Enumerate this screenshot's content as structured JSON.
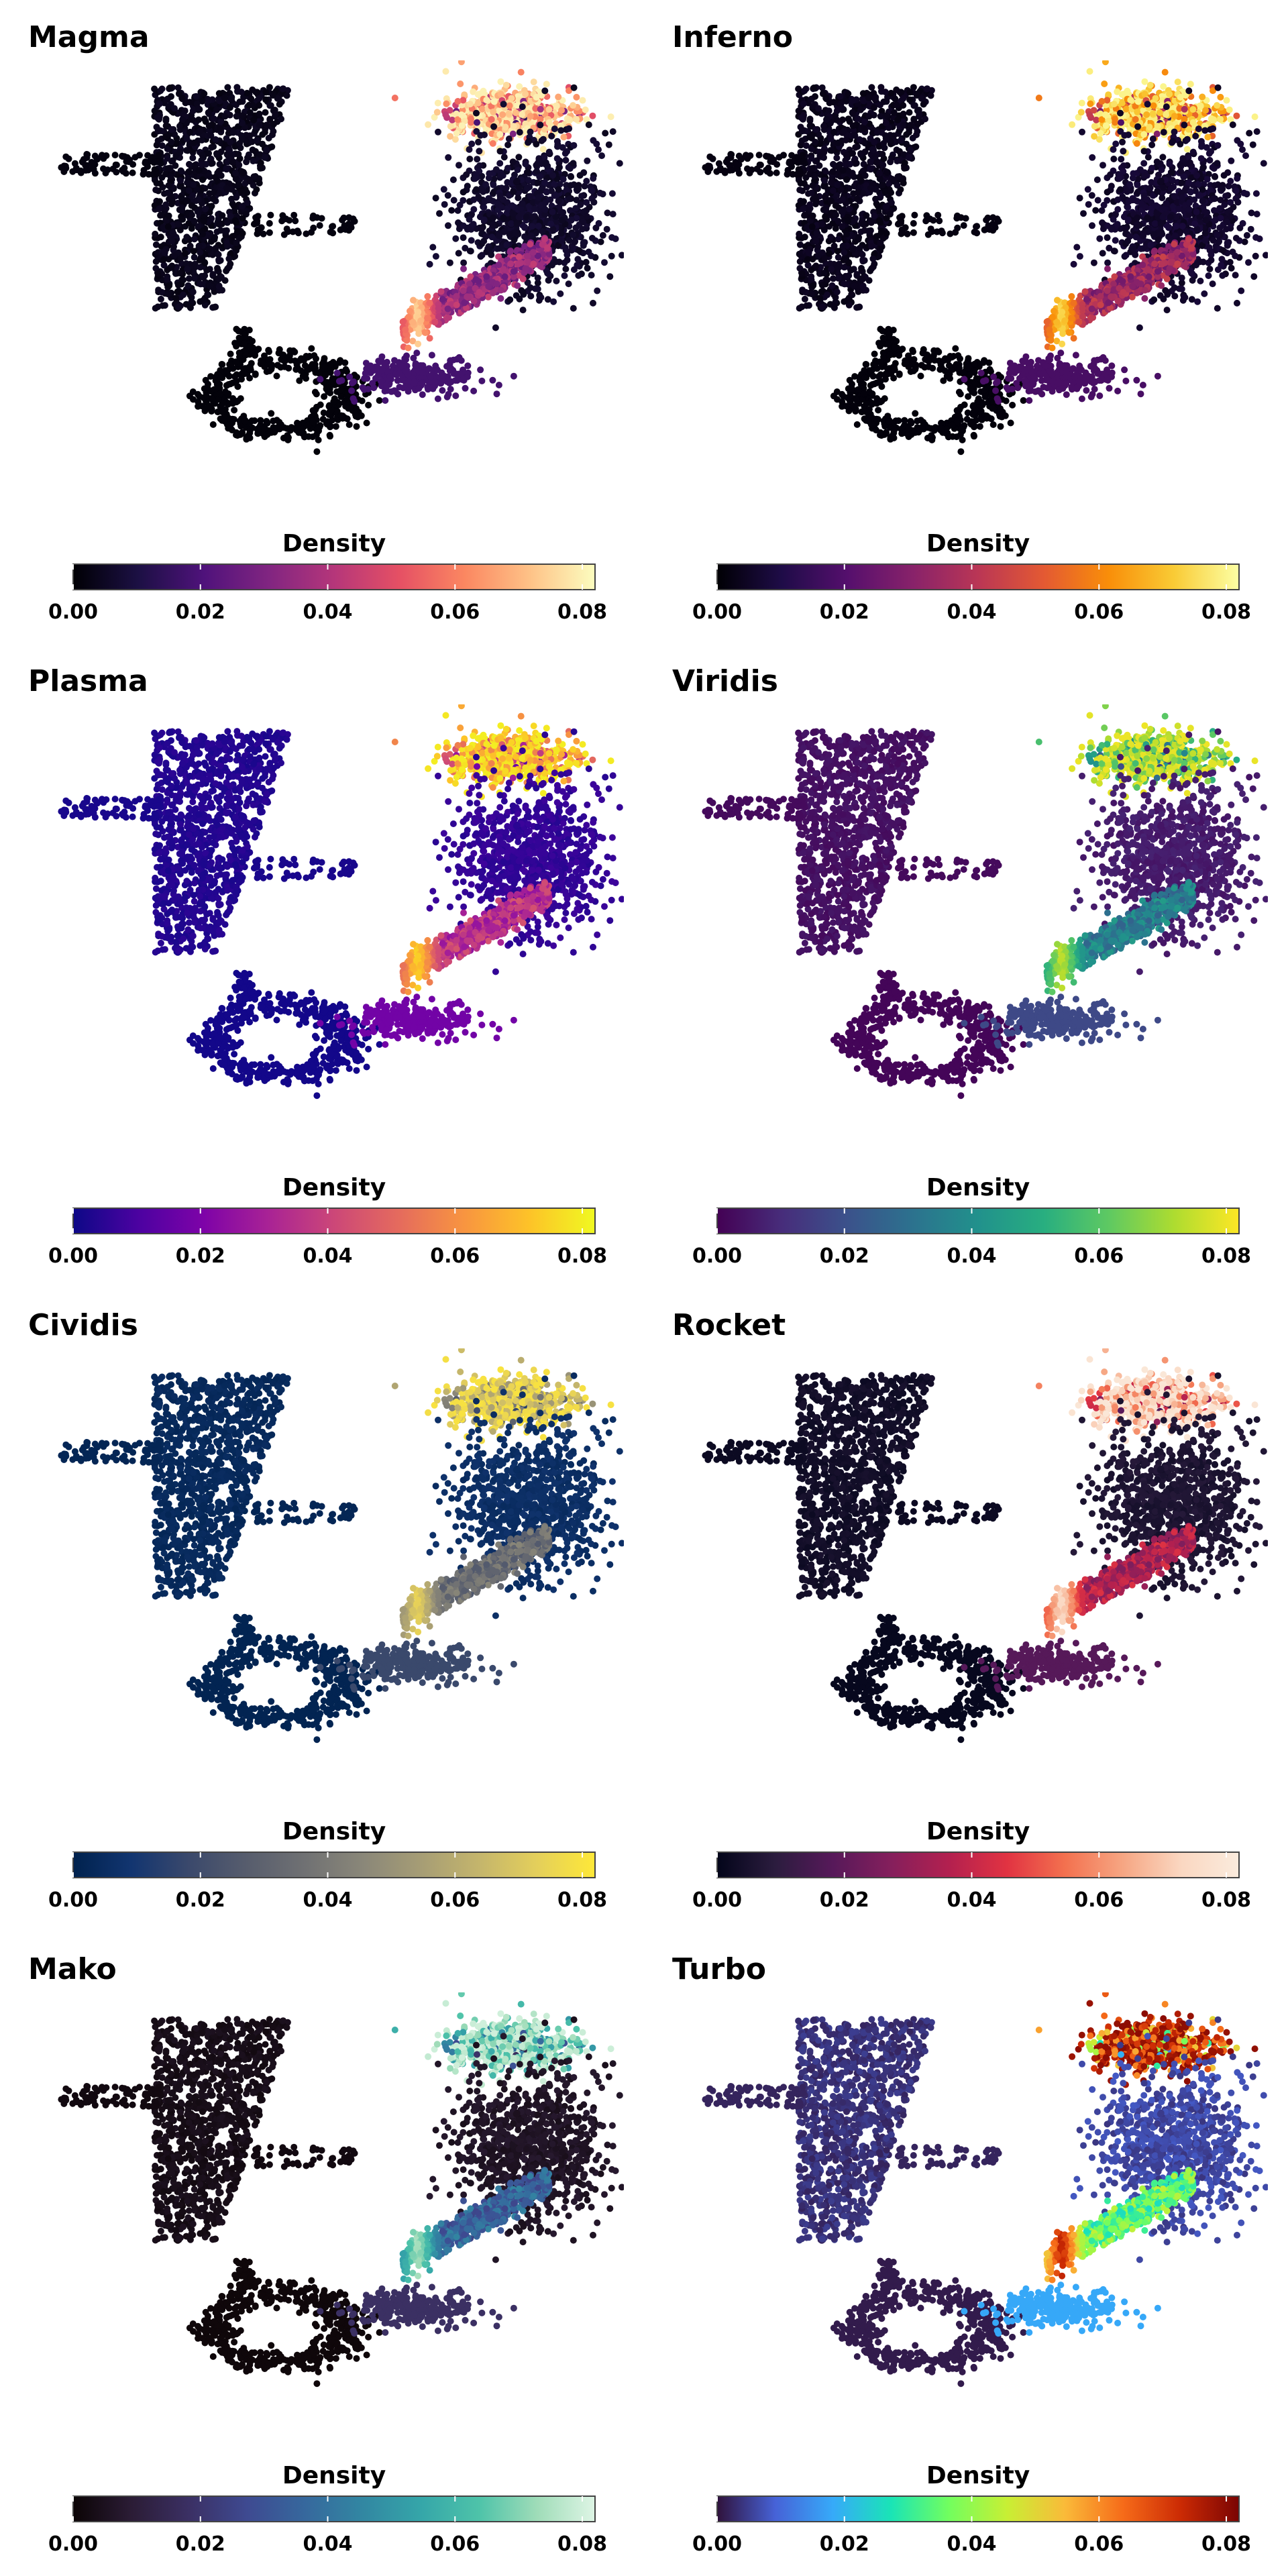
{
  "page": {
    "panels": [
      {
        "title": "Magma",
        "colorbar_title": "Density",
        "colormap": [
          "#000004",
          "#1c1044",
          "#4f127b",
          "#812581",
          "#b5367a",
          "#e55064",
          "#fb8761",
          "#fec287",
          "#fcfdbf"
        ]
      },
      {
        "title": "Inferno",
        "colorbar_title": "Density",
        "colormap": [
          "#000004",
          "#1f0c48",
          "#550f6d",
          "#88226a",
          "#ba3655",
          "#e35933",
          "#f98e09",
          "#f9cb35",
          "#fcffa4"
        ]
      },
      {
        "title": "Plasma",
        "colorbar_title": "Density",
        "colormap": [
          "#0d0887",
          "#4c02a1",
          "#7e03a8",
          "#a92395",
          "#cc4778",
          "#e56b5d",
          "#f89540",
          "#fdc328",
          "#f0f921"
        ]
      },
      {
        "title": "Viridis",
        "colorbar_title": "Density",
        "colormap": [
          "#440154",
          "#472d7b",
          "#3b528b",
          "#2c728e",
          "#21918c",
          "#28ae80",
          "#5ec962",
          "#addc30",
          "#fde725"
        ]
      },
      {
        "title": "Cividis",
        "colorbar_title": "Density",
        "colormap": [
          "#00224e",
          "#123570",
          "#3b496c",
          "#575d6d",
          "#707173",
          "#8a8779",
          "#a69d75",
          "#c4b56c",
          "#e4cf5b",
          "#fee838"
        ]
      },
      {
        "title": "Rocket",
        "colorbar_title": "Density",
        "colormap": [
          "#03051a",
          "#2b1c3e",
          "#57195a",
          "#851f5c",
          "#b3204f",
          "#e13342",
          "#f3714f",
          "#f6a683",
          "#fad7c1",
          "#faebdd"
        ]
      },
      {
        "title": "Mako",
        "colorbar_title": "Density",
        "colormap": [
          "#0b0405",
          "#2b1c35",
          "#3b3064",
          "#3e4a91",
          "#36689d",
          "#3287a2",
          "#35a6a9",
          "#4ec3a9",
          "#9fdcb8",
          "#def5e5"
        ]
      },
      {
        "title": "Turbo",
        "colorbar_title": "Density",
        "colormap": [
          "#30123b",
          "#4662d7",
          "#36aaf9",
          "#1ae4b6",
          "#72fe5e",
          "#c8ef34",
          "#faba39",
          "#f66b19",
          "#cb2a04",
          "#7a0403"
        ]
      }
    ]
  },
  "chart_data": {
    "type": "scatter",
    "description_kind": "umap-density-panels",
    "colorbar_ticks": [
      "0.00",
      "0.02",
      "0.04",
      "0.06",
      "0.08"
    ],
    "colorbar_range": [
      0,
      0.082
    ],
    "legend_label": "Density",
    "clusters": [
      {
        "x": [
          -6.5,
          2.0
        ],
        "y": [
          2.5,
          9.5
        ],
        "density": 0.002
      },
      {
        "x": [
          -6.0,
          -0.5
        ],
        "y": [
          -6.8,
          -4.0
        ],
        "density": 0.001
      },
      {
        "x": [
          7.5,
          11.5
        ],
        "y": [
          4.0,
          8.0
        ],
        "density": 0.003
      },
      {
        "x": [
          5.0,
          9.0
        ],
        "y": [
          8.8,
          10.7
        ],
        "density": 0.08
      },
      {
        "x": [
          4.0,
          8.8
        ],
        "y": [
          -1.5,
          2.5
        ],
        "density": 0.07
      },
      {
        "x": [
          4.0,
          6.5
        ],
        "y": [
          -2.2,
          -1.0
        ],
        "density": 0.015
      }
    ]
  }
}
